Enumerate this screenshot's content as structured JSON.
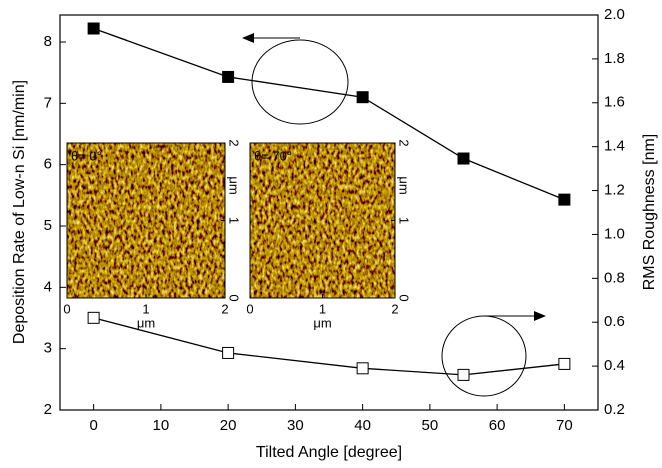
{
  "chart_data": {
    "type": "line",
    "xlabel": "Tilted Angle [degree]",
    "ylabel": "Deposition Rate of Low-n Si [nm/min]",
    "y2label": "RMS Roughness [nm]",
    "xlim": [
      -5,
      75
    ],
    "xticks": [
      0,
      10,
      20,
      30,
      40,
      50,
      60,
      70
    ],
    "ylim": [
      2,
      8.44
    ],
    "yticks": [
      2,
      3,
      4,
      5,
      6,
      7,
      8
    ],
    "y2lim": [
      0.2,
      2.0
    ],
    "y2ticks": [
      0.2,
      0.4,
      0.6,
      0.8,
      {
        "value": 1.0,
        "label": "1.0"
      },
      1.2,
      1.4,
      1.6,
      1.8,
      {
        "value": 2.0,
        "label": "2.0"
      }
    ],
    "x": [
      0,
      20,
      40,
      55,
      70
    ],
    "series": [
      {
        "color": "#000000",
        "marker": "filled-square",
        "values": [
          8.22,
          7.43,
          7.1,
          6.1,
          5.43
        ]
      },
      {
        "color": "#000000",
        "marker": "open-square",
        "axis": "y2",
        "values": [
          0.62,
          0.46,
          0.39,
          0.36,
          0.41
        ]
      }
    ],
    "insets": [
      {
        "label": "θ= 0°",
        "xlim": [
          0,
          2
        ],
        "ylim": [
          0,
          2
        ],
        "xticks": [
          0,
          1,
          2
        ],
        "yticks": [
          0,
          1,
          2
        ],
        "xlabel": "μm",
        "ylabel": "μm"
      },
      {
        "label": "θ= 70°",
        "xlim": [
          0,
          2
        ],
        "ylim": [
          0,
          2
        ],
        "xticks": [
          0,
          1,
          2
        ],
        "yticks": [
          0,
          1,
          2
        ],
        "xlabel": "μm",
        "ylabel": "μm"
      }
    ]
  }
}
